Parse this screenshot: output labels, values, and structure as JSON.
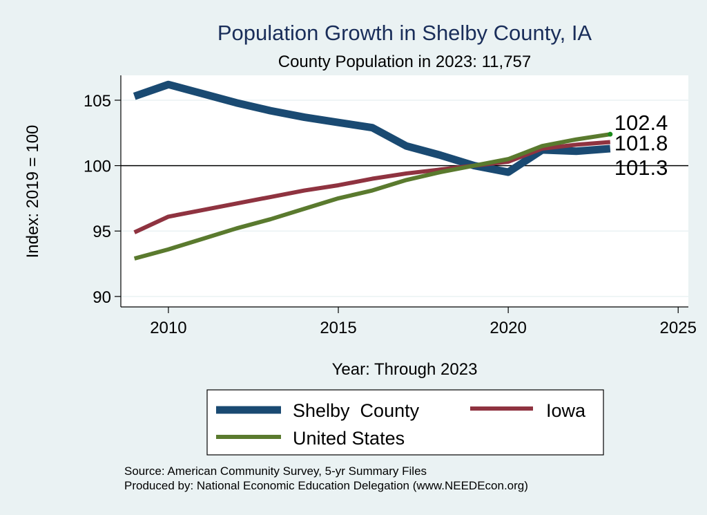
{
  "chart_data": {
    "type": "line",
    "title": "Population Growth in Shelby County, IA",
    "subtitle": "County Population in 2023: 11,757",
    "xlabel": "Year: Through 2023",
    "ylabel": "Index: 2019 = 100",
    "xlim": [
      2008.6,
      2025.3
    ],
    "ylim": [
      89.2,
      106.9
    ],
    "xticks": [
      2010,
      2015,
      2020,
      2025
    ],
    "yticks": [
      90,
      95,
      100,
      105
    ],
    "reference_line": 100,
    "grid": true,
    "x": [
      2009,
      2010,
      2011,
      2012,
      2013,
      2014,
      2015,
      2016,
      2017,
      2018,
      2019,
      2020,
      2021,
      2022,
      2023
    ],
    "series": [
      {
        "name": "Shelby  County",
        "color": "#1a4a72",
        "width": "thick",
        "values": [
          105.3,
          106.2,
          105.5,
          104.8,
          104.2,
          103.7,
          103.3,
          102.9,
          101.5,
          100.8,
          100.0,
          99.5,
          101.2,
          101.1,
          101.3
        ]
      },
      {
        "name": "Iowa",
        "color": "#8f3340",
        "width": "medium",
        "values": [
          94.9,
          96.1,
          96.6,
          97.1,
          97.6,
          98.1,
          98.5,
          99.0,
          99.4,
          99.7,
          100.0,
          100.3,
          101.3,
          101.6,
          101.8
        ]
      },
      {
        "name": "United States",
        "color": "#5a7a2e",
        "width": "medium",
        "values": [
          92.9,
          93.6,
          94.4,
          95.2,
          95.9,
          96.7,
          97.5,
          98.1,
          98.9,
          99.5,
          100.0,
          100.5,
          101.5,
          102.0,
          102.4
        ]
      }
    ],
    "end_labels": [
      "102.4",
      "101.8",
      "101.3"
    ],
    "legend": {
      "placement": "bottom",
      "entries": [
        "Shelby  County",
        "Iowa",
        "United States"
      ]
    },
    "notes": [
      "Source: American Community Survey, 5-yr Summary Files",
      "Produced by: National Economic Education Delegation (www.NEEDEcon.org)"
    ]
  }
}
